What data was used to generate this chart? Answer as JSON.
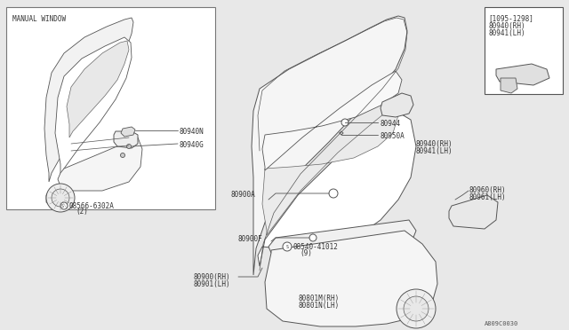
{
  "bg_color": "#e8e8e8",
  "line_color": "#555555",
  "text_color": "#333333",
  "white": "#ffffff",
  "diagram_code": "A809C0030",
  "labels": {
    "manual_window": "MANUAL WINDOW",
    "p80940N": "80940N",
    "p80940G": "80940G",
    "p08566": "08566-6302A",
    "p08566_2": "(2)",
    "p80900RH": "80900(RH)",
    "p80901LH": "80901(LH)",
    "p80900A": "80900A",
    "p80900F": "80900F",
    "p08540": "08540-41012",
    "p08540_9": "(9)",
    "p80801M": "80801M(RH)",
    "p80801N": "80801N(LH)",
    "p80944": "80944",
    "p80950A": "80950A",
    "p80940RH": "80940(RH)",
    "p80941LH": "80941(LH)",
    "p80960RH": "80960(RH)",
    "p80961LH": "80961(LH)",
    "p_date": "[1095-1298]",
    "p80940RH_i": "80940(RH)",
    "p80941LH_i": "80941(LH)"
  },
  "fs": 5.5
}
